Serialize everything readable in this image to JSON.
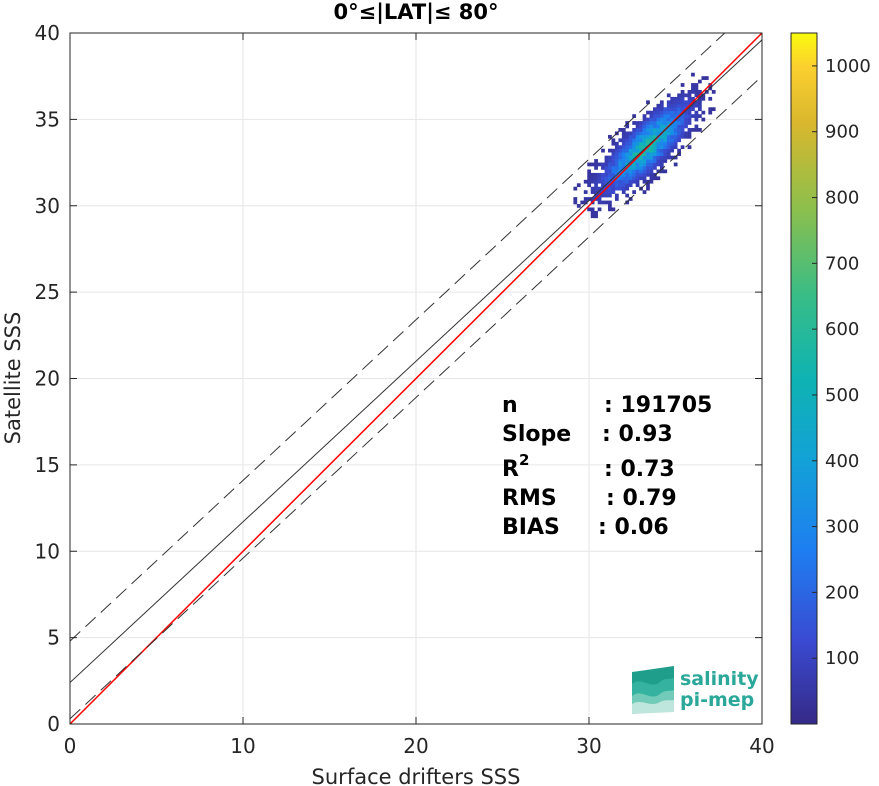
{
  "chart_data": {
    "type": "heatmap",
    "title": "0°≤|LAT|≤ 80°",
    "xlabel": "Surface drifters SSS",
    "ylabel": "Satellite SSS",
    "xlim": [
      0,
      40
    ],
    "ylim": [
      0,
      40
    ],
    "xticks": [
      "0",
      "10",
      "20",
      "30",
      "40"
    ],
    "yticks": [
      "0",
      "5",
      "10",
      "15",
      "20",
      "25",
      "30",
      "35",
      "40"
    ],
    "grid": true,
    "density_center": [
      33.2,
      33.3
    ],
    "density_max": 1050,
    "lines": [
      {
        "name": "identity",
        "color": "#ff0000",
        "x": [
          0,
          40
        ],
        "y": [
          0,
          40
        ]
      },
      {
        "name": "fit",
        "color": "#333333",
        "x": [
          0,
          40
        ],
        "y": [
          2.4,
          39.6
        ]
      },
      {
        "name": "fit-upper",
        "color": "#333333",
        "dash": true,
        "x": [
          0,
          40
        ],
        "y": [
          4.8,
          42.0
        ]
      },
      {
        "name": "fit-lower",
        "color": "#333333",
        "dash": true,
        "x": [
          0,
          40
        ],
        "y": [
          0.3,
          37.5
        ]
      }
    ],
    "colorbar": {
      "min": 0,
      "max": 1050,
      "colormap": "parula",
      "ticks": [
        "100",
        "200",
        "300",
        "400",
        "500",
        "600",
        "700",
        "800",
        "900",
        "1000"
      ]
    }
  },
  "stats": [
    {
      "label": "n",
      "value": ": 191705"
    },
    {
      "label": "Slope",
      "value": ": 0.93"
    },
    {
      "label": "R",
      "sup": "2",
      "value": ": 0.73"
    },
    {
      "label": "RMS",
      "value": ": 0.79"
    },
    {
      "label": "BIAS",
      "value": ": 0.06"
    }
  ],
  "logo": {
    "line1": "salinity",
    "line2": "pi-mep"
  }
}
